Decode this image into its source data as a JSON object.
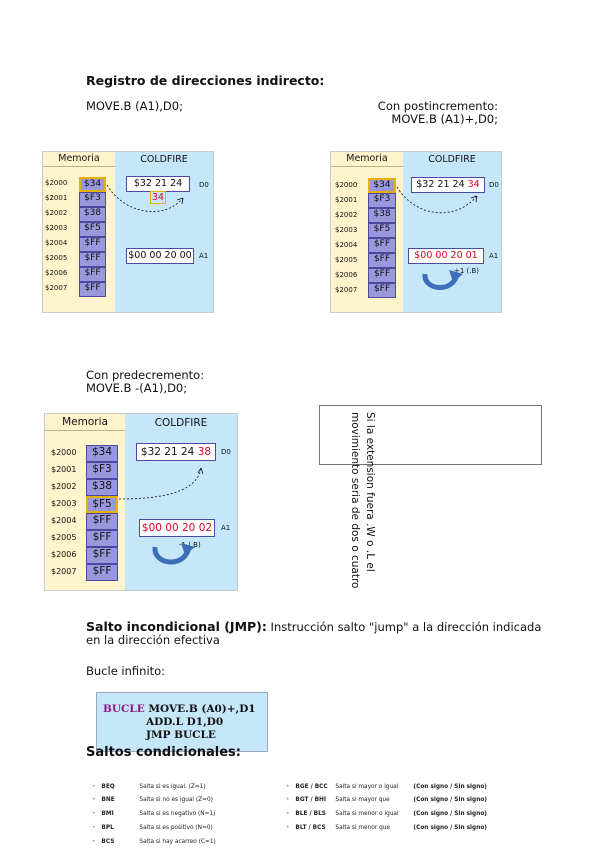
{
  "title_indirect": "Registro de direcciones indirecto:",
  "instr_basic": "MOVE.B (A1),D0;",
  "postinc_label": "Con postincremento:",
  "postinc_instr": "MOVE.B (A1)+,D0;",
  "predec_label": "Con predecremento:",
  "predec_instr": "MOVE.B -(A1),D0;",
  "diagram": {
    "memoria": "Memoria",
    "coldfire": "COLDFIRE",
    "addresses": [
      "$2000",
      "$2001",
      "$2002",
      "$2003",
      "$2004",
      "$2005",
      "$2006",
      "$2007"
    ],
    "cells": [
      "$34",
      "$F3",
      "$38",
      "$F5",
      "$FF",
      "$FF",
      "$FF",
      "$FF"
    ],
    "d0_label": "D0",
    "a1_label": "A1",
    "d0_prefix_1": "$32 21 24 ",
    "d0_suffix_1": "34",
    "a1_value_1": "$00 00 20 00",
    "d0_prefix_2": "$32 21 24 ",
    "d0_suffix_2": "34",
    "a1_value_2": "$00 00 20 01",
    "inc_note": "+1  (.B)",
    "d0_prefix_3": "$32 21 24 ",
    "d0_suffix_3": "38",
    "a1_value_3": "$00 00 20 02",
    "dec_note": "-1  (.B)"
  },
  "note_text_line1": "Si la extension fuera .W o .L el",
  "note_text_line2": "movimiento seria de dos o cuatro",
  "jmp_title": "Salto incondicional (JMP):",
  "jmp_text": " Instrucción salto \"jump\" a la dirección indicada en la dirección efectiva",
  "bucle_label": "Bucle infinito:",
  "code": {
    "label": "BUCLE",
    "line1": " MOVE.B (A0)+,D1",
    "line2": "ADD.L D1,D0",
    "line3": "JMP BUCLE"
  },
  "saltos_title": "Saltos condicionales:",
  "left_bullets": [
    {
      "code": "BEQ",
      "desc": "Salta si es igual.  (Z=1)"
    },
    {
      "code": "BNE",
      "desc": "Salta si no es igual (Z=0)"
    },
    {
      "code": "BMI",
      "desc": "Salta si es negativo  (N=1)"
    },
    {
      "code": "BPL",
      "desc": "Salta si es positivo  (N=0)"
    },
    {
      "code": "BCS",
      "desc": "Salta si hay acarreo  (C=1)"
    }
  ],
  "right_bullets": [
    {
      "code": "BGE / BCC",
      "desc": "Salta si mayor o igual",
      "tag": "(Con signo / Sin signo)"
    },
    {
      "code": "BGT / BHI",
      "desc": "Salta si mayor que",
      "tag": "(Con signo / Sin signo)"
    },
    {
      "code": "BLE / BLS",
      "desc": "Salta si menor o igual",
      "tag": "(Con signo / Sin signo)"
    },
    {
      "code": "BLT / BCS",
      "desc": "Salta si menor que",
      "tag": "(Con signo / Sin signo)"
    }
  ]
}
